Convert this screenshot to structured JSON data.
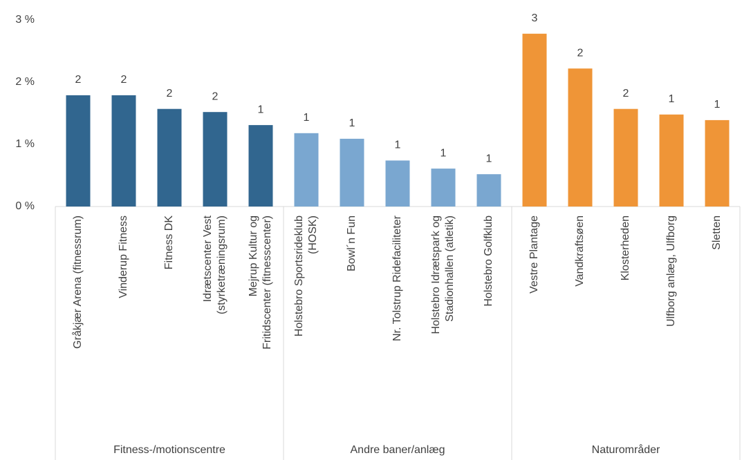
{
  "chart_data": {
    "type": "bar",
    "ylim": [
      0,
      3
    ],
    "yticks": [
      {
        "value": 0,
        "label": "0 %"
      },
      {
        "value": 1,
        "label": "1 %"
      },
      {
        "value": 2,
        "label": "2 %"
      },
      {
        "value": 3,
        "label": "3 %"
      }
    ],
    "grid": false,
    "groups": [
      {
        "name": "Fitness-/motionscentre",
        "color": "#31668f",
        "categories": [
          "Gråkjær Arena (fitnessrum)",
          "Vinderup Fitness",
          "Fitness DK",
          "Idrætscenter Vest\n(styrketræningsrum)",
          "Mejrup Kultur og\nFritidscenter (fitnesscenter)"
        ],
        "values": [
          1.79,
          1.79,
          1.57,
          1.52,
          1.31
        ],
        "value_labels": [
          "2",
          "2",
          "2",
          "2",
          "1"
        ]
      },
      {
        "name": "Andre baner/anlæg",
        "color": "#7aa7d0",
        "categories": [
          "Holstebro Sportsrideklub\n(HOSK)",
          "Bowl´n Fun",
          "Nr. Tolstrup Ridefaciliteter",
          "Holstebro Idrætspark og\nStadionhallen (atletik)",
          "Holstebro Golfklub"
        ],
        "values": [
          1.18,
          1.09,
          0.74,
          0.61,
          0.52
        ],
        "value_labels": [
          "1",
          "1",
          "1",
          "1",
          "1"
        ]
      },
      {
        "name": "Naturområder",
        "color": "#ef9537",
        "categories": [
          "Vestre Plantage",
          "Vandkraftsøen",
          "Klosterheden",
          "Ulfborg anlæg, Ulfborg",
          "Sletten"
        ],
        "values": [
          2.78,
          2.22,
          1.57,
          1.48,
          1.39
        ],
        "value_labels": [
          "3",
          "2",
          "2",
          "1",
          "1"
        ]
      }
    ]
  }
}
